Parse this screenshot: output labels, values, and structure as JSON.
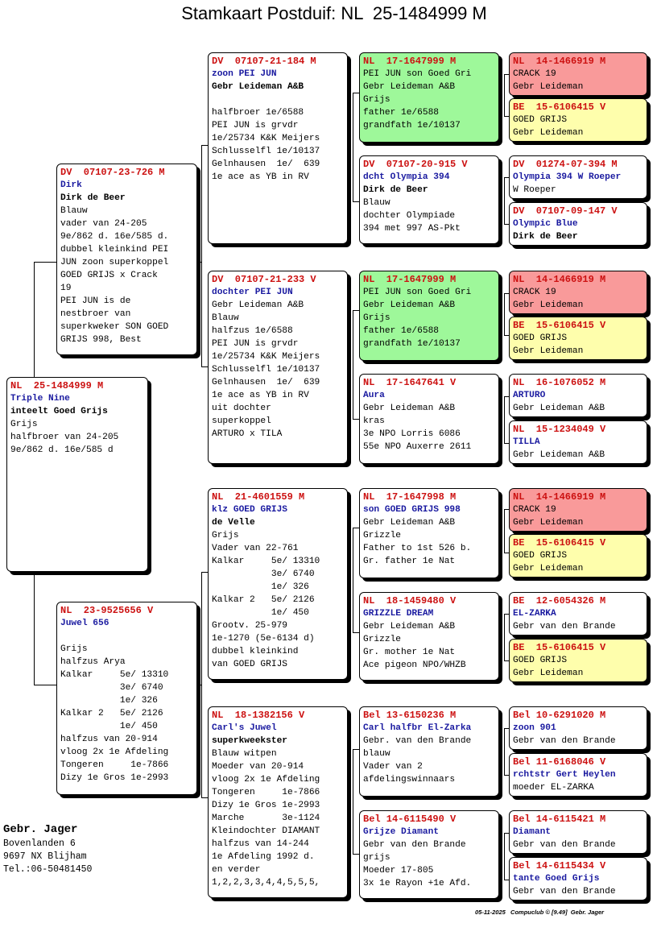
{
  "title": "Stamkaart Postduif: NL  25-1484999 M",
  "breeder": {
    "name": "Gebr. Jager",
    "address": "Bovenlanden 6",
    "city": "9697 NX  Blijham",
    "phone": "Tel.:06-50481450"
  },
  "footer": "05-11-2025   Compuclub © [9.49]  Gebr. Jager",
  "cards": {
    "subject": [
      {
        "t": "r",
        "v": "NL  25-1484999 M"
      },
      {
        "t": "b",
        "v": "Triple Nine"
      },
      {
        "t": "k",
        "v": "inteelt Goed Grijs"
      },
      {
        "t": "n",
        "v": "Grijs"
      },
      {
        "t": "n",
        "v": "halfbroer van 24-205"
      },
      {
        "t": "n",
        "v": "9e/862 d. 16e/585 d"
      }
    ],
    "sire": [
      {
        "t": "r",
        "v": "DV  07107-23-726 M"
      },
      {
        "t": "b",
        "v": "Dirk"
      },
      {
        "t": "k",
        "v": "Dirk de Beer"
      },
      {
        "t": "n",
        "v": "Blauw"
      },
      {
        "t": "n",
        "v": "vader van 24-205"
      },
      {
        "t": "n",
        "v": "9e/862 d. 16e/585 d."
      },
      {
        "t": "n",
        "v": "dubbel kleinkind PEI"
      },
      {
        "t": "n",
        "v": "JUN zoon superkoppel"
      },
      {
        "t": "n",
        "v": "GOED GRIJS x Crack"
      },
      {
        "t": "n",
        "v": "19"
      },
      {
        "t": "n",
        "v": "PEI JUN is de"
      },
      {
        "t": "n",
        "v": "nestbroer van"
      },
      {
        "t": "n",
        "v": "superkweker SON GOED"
      },
      {
        "t": "n",
        "v": "GRIJS 998, Best"
      }
    ],
    "dam": [
      {
        "t": "r",
        "v": "NL  23-9525656 V"
      },
      {
        "t": "b",
        "v": "Juwel 656"
      },
      {
        "t": "n",
        "v": ""
      },
      {
        "t": "n",
        "v": "Grijs"
      },
      {
        "t": "n",
        "v": "halfzus Arya"
      },
      {
        "t": "n",
        "v": "Kalkar     5e/ 13310"
      },
      {
        "t": "n",
        "v": "           3e/ 6740"
      },
      {
        "t": "n",
        "v": "           1e/ 326"
      },
      {
        "t": "n",
        "v": "Kalkar 2   5e/ 2126"
      },
      {
        "t": "n",
        "v": "           1e/ 450"
      },
      {
        "t": "n",
        "v": "halfzus van 20-914"
      },
      {
        "t": "n",
        "v": "vloog 2x 1e Afdeling"
      },
      {
        "t": "n",
        "v": "Tongeren     1e-7866"
      },
      {
        "t": "n",
        "v": "Dizy 1e Gros 1e-2993"
      }
    ],
    "ss": [
      {
        "t": "r",
        "v": "DV  07107-21-184 M"
      },
      {
        "t": "b",
        "v": "zoon PEI JUN"
      },
      {
        "t": "k",
        "v": "Gebr Leideman A&B"
      },
      {
        "t": "n",
        "v": ""
      },
      {
        "t": "n",
        "v": "halfbroer 1e/6588"
      },
      {
        "t": "n",
        "v": "PEI JUN is grvdr"
      },
      {
        "t": "n",
        "v": "1e/25734 K&K Meijers"
      },
      {
        "t": "n",
        "v": "Schlusselfl 1e/10137"
      },
      {
        "t": "n",
        "v": "Gelnhausen  1e/  639"
      },
      {
        "t": "n",
        "v": "1e ace as YB in RV"
      }
    ],
    "sd": [
      {
        "t": "r",
        "v": "DV  07107-21-233 V"
      },
      {
        "t": "b",
        "v": "dochter PEI JUN"
      },
      {
        "t": "n",
        "v": "Gebr Leideman A&B"
      },
      {
        "t": "n",
        "v": "Blauw"
      },
      {
        "t": "n",
        "v": "halfzus 1e/6588"
      },
      {
        "t": "n",
        "v": "PEI JUN is grvdr"
      },
      {
        "t": "n",
        "v": "1e/25734 K&K Meijers"
      },
      {
        "t": "n",
        "v": "Schlusselfl 1e/10137"
      },
      {
        "t": "n",
        "v": "Gelnhausen  1e/  639"
      },
      {
        "t": "n",
        "v": "1e ace as YB in RV"
      },
      {
        "t": "n",
        "v": "uit dochter"
      },
      {
        "t": "n",
        "v": "superkoppel"
      },
      {
        "t": "n",
        "v": "ARTURO x TILA"
      }
    ],
    "ds": [
      {
        "t": "r",
        "v": "NL  21-4601559 M"
      },
      {
        "t": "b",
        "v": "klz GOED GRIJS"
      },
      {
        "t": "k",
        "v": "de Velle"
      },
      {
        "t": "n",
        "v": "Grijs"
      },
      {
        "t": "n",
        "v": "Vader van 22-761"
      },
      {
        "t": "n",
        "v": "Kalkar     5e/ 13310"
      },
      {
        "t": "n",
        "v": "           3e/ 6740"
      },
      {
        "t": "n",
        "v": "           1e/ 326"
      },
      {
        "t": "n",
        "v": "Kalkar 2   5e/ 2126"
      },
      {
        "t": "n",
        "v": "           1e/ 450"
      },
      {
        "t": "n",
        "v": "Grootv. 25-979"
      },
      {
        "t": "n",
        "v": "1e-1270 (5e-6134 d)"
      },
      {
        "t": "n",
        "v": "dubbel kleinkind"
      },
      {
        "t": "n",
        "v": "van GOED GRIJS"
      }
    ],
    "dd": [
      {
        "t": "r",
        "v": "NL  18-1382156 V"
      },
      {
        "t": "b",
        "v": "Carl's Juwel"
      },
      {
        "t": "k",
        "v": "superkweekster"
      },
      {
        "t": "n",
        "v": "Blauw witpen"
      },
      {
        "t": "n",
        "v": "Moeder van 20-914"
      },
      {
        "t": "n",
        "v": "vloog 2x 1e Afdeling"
      },
      {
        "t": "n",
        "v": "Tongeren     1e-7866"
      },
      {
        "t": "n",
        "v": "Dizy 1e Gros 1e-2993"
      },
      {
        "t": "n",
        "v": "Marche       3e-1124"
      },
      {
        "t": "n",
        "v": "Kleindochter DIAMANT"
      },
      {
        "t": "n",
        "v": "halfzus van 14-244"
      },
      {
        "t": "n",
        "v": "1e Afdeling 1992 d."
      },
      {
        "t": "n",
        "v": "en verder"
      },
      {
        "t": "n",
        "v": "1,2,2,3,3,4,4,5,5,5,"
      }
    ],
    "sss": [
      {
        "t": "r",
        "v": "NL  17-1647999 M"
      },
      {
        "t": "n",
        "v": "PEI JUN son Goed Gri"
      },
      {
        "t": "n",
        "v": "Gebr Leideman A&B"
      },
      {
        "t": "n",
        "v": "Grijs"
      },
      {
        "t": "n",
        "v": "father 1e/6588"
      },
      {
        "t": "n",
        "v": "grandfath 1e/10137"
      }
    ],
    "ssd": [
      {
        "t": "r",
        "v": "DV  07107-20-915 V"
      },
      {
        "t": "b",
        "v": "dcht Olympia 394"
      },
      {
        "t": "k",
        "v": "Dirk de Beer"
      },
      {
        "t": "n",
        "v": "Blauw"
      },
      {
        "t": "n",
        "v": "dochter Olympiade"
      },
      {
        "t": "n",
        "v": "394 met 997 AS-Pkt"
      }
    ],
    "sds": [
      {
        "t": "r",
        "v": "NL  17-1647999 M"
      },
      {
        "t": "n",
        "v": "PEI JUN son Goed Gri"
      },
      {
        "t": "n",
        "v": "Gebr Leideman A&B"
      },
      {
        "t": "n",
        "v": "Grijs"
      },
      {
        "t": "n",
        "v": "father 1e/6588"
      },
      {
        "t": "n",
        "v": "grandfath 1e/10137"
      }
    ],
    "sdd": [
      {
        "t": "r",
        "v": "NL  17-1647641 V"
      },
      {
        "t": "b",
        "v": "Aura"
      },
      {
        "t": "n",
        "v": "Gebr Leideman A&B"
      },
      {
        "t": "n",
        "v": "kras"
      },
      {
        "t": "n",
        "v": "3e NPO Lorris 6086"
      },
      {
        "t": "n",
        "v": "55e NPO Auxerre 2611"
      }
    ],
    "dss": [
      {
        "t": "r",
        "v": "NL  17-1647998 M"
      },
      {
        "t": "b",
        "v": "son GOED GRIJS 998"
      },
      {
        "t": "n",
        "v": "Gebr Leideman A&B"
      },
      {
        "t": "n",
        "v": "Grizzle"
      },
      {
        "t": "n",
        "v": "Father to 1st 526 b."
      },
      {
        "t": "n",
        "v": "Gr. father 1e Nat"
      }
    ],
    "dsd": [
      {
        "t": "r",
        "v": "NL  18-1459480 V"
      },
      {
        "t": "b",
        "v": "GRIZZLE DREAM"
      },
      {
        "t": "n",
        "v": "Gebr Leideman A&B"
      },
      {
        "t": "n",
        "v": "Grizzle"
      },
      {
        "t": "n",
        "v": "Gr. mother 1e Nat"
      },
      {
        "t": "n",
        "v": "Ace pigeon NPO/WHZB"
      }
    ],
    "dds": [
      {
        "t": "r",
        "v": "Bel 13-6150236 M"
      },
      {
        "t": "b",
        "v": "Carl halfbr El-Zarka"
      },
      {
        "t": "n",
        "v": "Gebr. van den Brande"
      },
      {
        "t": "n",
        "v": "blauw"
      },
      {
        "t": "n",
        "v": "Vader van 2"
      },
      {
        "t": "n",
        "v": "afdelingswinnaars"
      }
    ],
    "ddd": [
      {
        "t": "r",
        "v": "Bel 14-6115490 V"
      },
      {
        "t": "b",
        "v": "Grijze Diamant"
      },
      {
        "t": "n",
        "v": "Gebr van den Brande"
      },
      {
        "t": "n",
        "v": "grijs"
      },
      {
        "t": "n",
        "v": "Moeder 17-805"
      },
      {
        "t": "n",
        "v": "3x 1e Rayon +1e Afd."
      }
    ],
    "g1": [
      {
        "t": "r",
        "v": "NL  14-1466919 M"
      },
      {
        "t": "n",
        "v": "CRACK 19"
      },
      {
        "t": "n",
        "v": "Gebr Leideman"
      }
    ],
    "g2": [
      {
        "t": "r",
        "v": "BE  15-6106415 V"
      },
      {
        "t": "n",
        "v": "GOED GRIJS"
      },
      {
        "t": "n",
        "v": "Gebr Leideman"
      }
    ],
    "g3": [
      {
        "t": "r",
        "v": "DV  01274-07-394 M"
      },
      {
        "t": "b",
        "v": "Olympia 394 W Roeper"
      },
      {
        "t": "n",
        "v": "W Roeper"
      }
    ],
    "g4": [
      {
        "t": "r",
        "v": "DV  07107-09-147 V"
      },
      {
        "t": "b",
        "v": "Olympic Blue"
      },
      {
        "t": "k",
        "v": "Dirk de Beer"
      }
    ],
    "g5": [
      {
        "t": "r",
        "v": "NL  14-1466919 M"
      },
      {
        "t": "n",
        "v": "CRACK 19"
      },
      {
        "t": "n",
        "v": "Gebr Leideman"
      }
    ],
    "g6": [
      {
        "t": "r",
        "v": "BE  15-6106415 V"
      },
      {
        "t": "n",
        "v": "GOED GRIJS"
      },
      {
        "t": "n",
        "v": "Gebr Leideman"
      }
    ],
    "g7": [
      {
        "t": "r",
        "v": "NL  16-1076052 M"
      },
      {
        "t": "b",
        "v": "ARTURO"
      },
      {
        "t": "n",
        "v": "Gebr Leideman A&B"
      }
    ],
    "g8": [
      {
        "t": "r",
        "v": "NL  15-1234049 V"
      },
      {
        "t": "b",
        "v": "TILLA"
      },
      {
        "t": "n",
        "v": "Gebr Leideman A&B"
      }
    ],
    "g9": [
      {
        "t": "r",
        "v": "NL  14-1466919 M"
      },
      {
        "t": "n",
        "v": "CRACK 19"
      },
      {
        "t": "n",
        "v": "Gebr Leideman"
      }
    ],
    "g10": [
      {
        "t": "r",
        "v": "BE  15-6106415 V"
      },
      {
        "t": "n",
        "v": "GOED GRIJS"
      },
      {
        "t": "n",
        "v": "Gebr Leideman"
      }
    ],
    "g11": [
      {
        "t": "r",
        "v": "BE  12-6054326 M"
      },
      {
        "t": "b",
        "v": "EL-ZARKA"
      },
      {
        "t": "n",
        "v": "Gebr van den Brande"
      }
    ],
    "g12": [
      {
        "t": "r",
        "v": "BE  15-6106415 V"
      },
      {
        "t": "n",
        "v": "GOED GRIJS"
      },
      {
        "t": "n",
        "v": "Gebr Leideman"
      }
    ],
    "g13": [
      {
        "t": "r",
        "v": "Bel 10-6291020 M"
      },
      {
        "t": "b",
        "v": "zoon 901"
      },
      {
        "t": "n",
        "v": "Gebr van den Brande"
      }
    ],
    "g14": [
      {
        "t": "r",
        "v": "Bel 11-6168046 V"
      },
      {
        "t": "b",
        "v": "rchtstr Gert Heylen"
      },
      {
        "t": "n",
        "v": "moeder EL-ZARKA"
      }
    ],
    "g15": [
      {
        "t": "r",
        "v": "Bel 14-6115421 M"
      },
      {
        "t": "b",
        "v": "Diamant"
      },
      {
        "t": "n",
        "v": "Gebr van den Brande"
      }
    ],
    "g16": [
      {
        "t": "r",
        "v": "Bel 14-6115434 V"
      },
      {
        "t": "b",
        "v": "tante Goed Grijs"
      },
      {
        "t": "n",
        "v": "Gebr van den Brande"
      }
    ]
  }
}
